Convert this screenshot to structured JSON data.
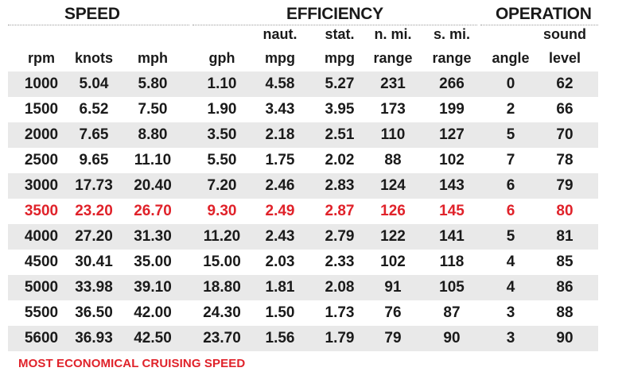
{
  "groups": {
    "speed": "SPEED",
    "efficiency": "EFFICIENCY",
    "operation": "OPERATION"
  },
  "headers": [
    {
      "top": "",
      "bottom": "rpm"
    },
    {
      "top": "",
      "bottom": "knots"
    },
    {
      "top": "",
      "bottom": "mph"
    },
    {
      "top": "",
      "bottom": "gph"
    },
    {
      "top": "naut.",
      "bottom": "mpg"
    },
    {
      "top": "stat.",
      "bottom": "mpg"
    },
    {
      "top": "n. mi.",
      "bottom": "range"
    },
    {
      "top": "s. mi.",
      "bottom": "range"
    },
    {
      "top": "",
      "bottom": "angle"
    },
    {
      "top": "sound",
      "bottom": "level"
    }
  ],
  "rows": [
    [
      "1000",
      "5.04",
      "5.80",
      "1.10",
      "4.58",
      "5.27",
      "231",
      "266",
      "0",
      "62"
    ],
    [
      "1500",
      "6.52",
      "7.50",
      "1.90",
      "3.43",
      "3.95",
      "173",
      "199",
      "2",
      "66"
    ],
    [
      "2000",
      "7.65",
      "8.80",
      "3.50",
      "2.18",
      "2.51",
      "110",
      "127",
      "5",
      "70"
    ],
    [
      "2500",
      "9.65",
      "11.10",
      "5.50",
      "1.75",
      "2.02",
      "88",
      "102",
      "7",
      "78"
    ],
    [
      "3000",
      "17.73",
      "20.40",
      "7.20",
      "2.46",
      "2.83",
      "124",
      "143",
      "6",
      "79"
    ],
    [
      "3500",
      "23.20",
      "26.70",
      "9.30",
      "2.49",
      "2.87",
      "126",
      "145",
      "6",
      "80"
    ],
    [
      "4000",
      "27.20",
      "31.30",
      "11.20",
      "2.43",
      "2.79",
      "122",
      "141",
      "5",
      "81"
    ],
    [
      "4500",
      "30.41",
      "35.00",
      "15.00",
      "2.03",
      "2.33",
      "102",
      "118",
      "4",
      "85"
    ],
    [
      "5000",
      "33.98",
      "39.10",
      "18.80",
      "1.81",
      "2.08",
      "91",
      "105",
      "4",
      "86"
    ],
    [
      "5500",
      "36.50",
      "42.00",
      "24.30",
      "1.50",
      "1.73",
      "76",
      "87",
      "3",
      "88"
    ],
    [
      "5600",
      "36.93",
      "42.50",
      "23.70",
      "1.56",
      "1.79",
      "79",
      "90",
      "3",
      "90"
    ]
  ],
  "highlight_row_index": 5,
  "highlight_color": "#e0222a",
  "shade_color": "#e9e9e9",
  "footnote": "MOST ECONOMICAL CRUISING SPEED"
}
